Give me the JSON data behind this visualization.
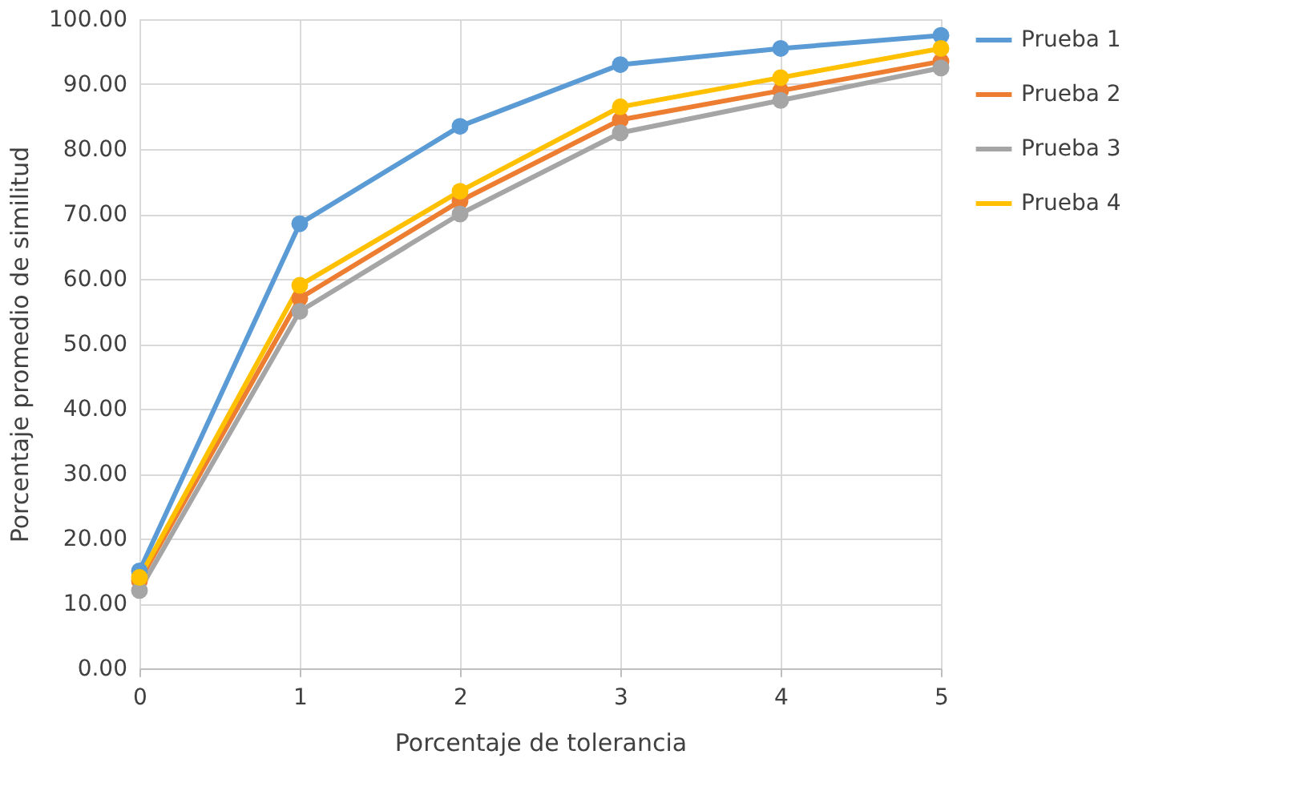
{
  "chart_data": {
    "type": "line",
    "xlabel": "Porcentaje de tolerancia",
    "ylabel": "Porcentaje promedio de similitud",
    "x": [
      0,
      1,
      2,
      3,
      4,
      5
    ],
    "series": [
      {
        "name": "Prueba 1",
        "color": "#5b9bd5",
        "values": [
          15,
          68.5,
          83.5,
          93,
          95.5,
          97.5
        ]
      },
      {
        "name": "Prueba 2",
        "color": "#ed7d31",
        "values": [
          13.5,
          57,
          72,
          84.5,
          89,
          93.5
        ]
      },
      {
        "name": "Prueba 3",
        "color": "#a5a5a5",
        "values": [
          12,
          55,
          70,
          82.5,
          87.5,
          92.5
        ]
      },
      {
        "name": "Prueba 4",
        "color": "#ffc000",
        "values": [
          14,
          59,
          73.5,
          86.5,
          91,
          95.5
        ]
      }
    ],
    "xlim": [
      0,
      5
    ],
    "xticks": [
      0,
      1,
      2,
      3,
      4,
      5
    ],
    "ylim": [
      0,
      100
    ],
    "yticks": [
      {
        "value": 0,
        "label": "0.00"
      },
      {
        "value": 10,
        "label": "10.00"
      },
      {
        "value": 20,
        "label": "20.00"
      },
      {
        "value": 30,
        "label": "30.00"
      },
      {
        "value": 40,
        "label": "40.00"
      },
      {
        "value": 50,
        "label": "50.00"
      },
      {
        "value": 60,
        "label": "60.00"
      },
      {
        "value": 70,
        "label": "70.00"
      },
      {
        "value": 80,
        "label": "80.00"
      },
      {
        "value": 90,
        "label": "90.00"
      },
      {
        "value": 100,
        "label": "100.00"
      }
    ],
    "grid": true,
    "legend": "right",
    "marker": "circle",
    "line_style": "solid"
  }
}
